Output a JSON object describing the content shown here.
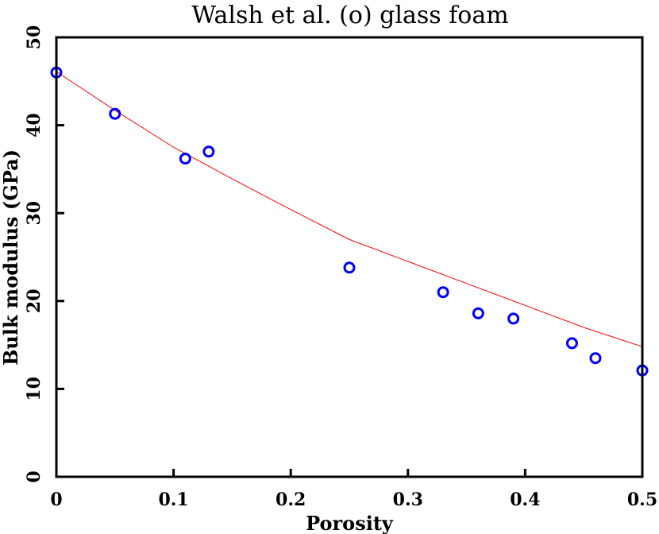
{
  "chart_data": {
    "type": "scatter",
    "title": "Walsh et al. (o) glass foam",
    "xlabel": "Porosity",
    "ylabel": "Bulk modulus (GPa)",
    "xlim": [
      0,
      0.5
    ],
    "ylim": [
      0,
      50
    ],
    "xticks": [
      0,
      0.1,
      0.2,
      0.3,
      0.4,
      0.5
    ],
    "xtick_labels": [
      "0",
      "0.1",
      "0.2",
      "0.3",
      "0.4",
      "0.5"
    ],
    "yticks": [
      0,
      10,
      20,
      30,
      40,
      50
    ],
    "ytick_labels": [
      "0",
      "10",
      "20",
      "30",
      "40",
      "50"
    ],
    "grid": false,
    "series": [
      {
        "type": "scatter",
        "marker": "circle-open",
        "color": "#0000ff",
        "x": [
          0.0,
          0.05,
          0.11,
          0.13,
          0.25,
          0.33,
          0.36,
          0.39,
          0.44,
          0.46,
          0.5
        ],
        "y": [
          46.0,
          41.3,
          36.2,
          37.0,
          23.8,
          21.0,
          18.6,
          18.0,
          15.2,
          13.5,
          12.1
        ]
      },
      {
        "type": "line",
        "color": "#ff0000",
        "x": [
          0.0,
          0.05,
          0.1,
          0.15,
          0.2,
          0.25,
          0.3,
          0.35,
          0.4,
          0.45,
          0.5
        ],
        "y": [
          46.1,
          41.7,
          37.5,
          33.9,
          30.4,
          27.0,
          24.5,
          22.0,
          19.5,
          17.0,
          14.8
        ]
      }
    ]
  }
}
